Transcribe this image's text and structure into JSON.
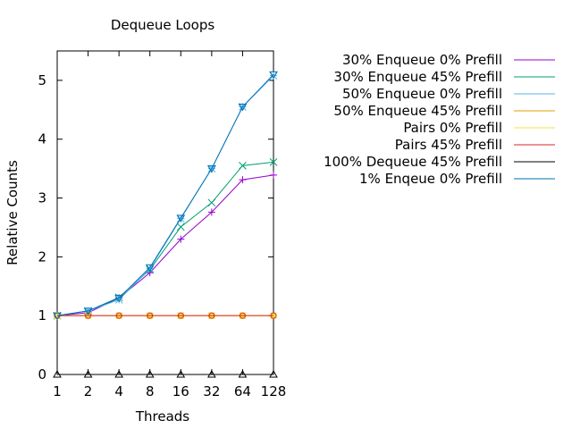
{
  "chart_data": {
    "type": "line",
    "title": "Dequeue Loops",
    "xlabel": "Threads",
    "ylabel": "Relative Counts",
    "categories": [
      "1",
      "2",
      "4",
      "8",
      "16",
      "32",
      "64",
      "128"
    ],
    "ylim": [
      0,
      5.5
    ],
    "yticks": [
      "0",
      "1",
      "2",
      "3",
      "4",
      "5"
    ],
    "grid": false,
    "legend_position": "right",
    "series": [
      {
        "name": "30% Enqueue 0% Prefill",
        "color": "#9400d3",
        "marker": "plus",
        "values": [
          1.0,
          1.05,
          1.3,
          1.73,
          2.3,
          2.76,
          3.31,
          3.39
        ]
      },
      {
        "name": "30% Enqueue 45% Prefill",
        "color": "#009e73",
        "marker": "cross",
        "values": [
          1.0,
          1.08,
          1.31,
          1.78,
          2.51,
          2.92,
          3.55,
          3.61
        ]
      },
      {
        "name": "50% Enqueue 0% Prefill",
        "color": "#56b4e9",
        "marker": "asterisk",
        "values": [
          1.0,
          1.08,
          1.27,
          1.8,
          2.65,
          3.5,
          4.55,
          5.08
        ]
      },
      {
        "name": "50% Enqueue 45% Prefill",
        "color": "#e69f00",
        "marker": "square",
        "values": [
          1.0,
          1.0,
          1.0,
          1.0,
          1.0,
          1.0,
          1.0,
          1.0
        ]
      },
      {
        "name": "Pairs 0% Prefill",
        "color": "#f0e442",
        "marker": "filled-square",
        "values": [
          1.0,
          1.0,
          1.0,
          1.0,
          1.0,
          1.0,
          1.0,
          1.0
        ]
      },
      {
        "name": "Pairs 45% Prefill",
        "color": "#d62728",
        "marker": "circle",
        "values": [
          1.0,
          1.0,
          1.0,
          1.0,
          1.0,
          1.0,
          1.0,
          1.0
        ]
      },
      {
        "name": "100% Dequeue 45% Prefill",
        "color": "#000000",
        "marker": "triangle",
        "values": [
          0,
          0,
          0,
          0,
          0,
          0,
          0,
          0
        ]
      },
      {
        "name": "1% Enqeue 0% Prefill",
        "color": "#0072b2",
        "marker": "inv-triangle",
        "values": [
          1.0,
          1.08,
          1.3,
          1.82,
          2.66,
          3.5,
          4.55,
          5.1
        ]
      }
    ]
  }
}
